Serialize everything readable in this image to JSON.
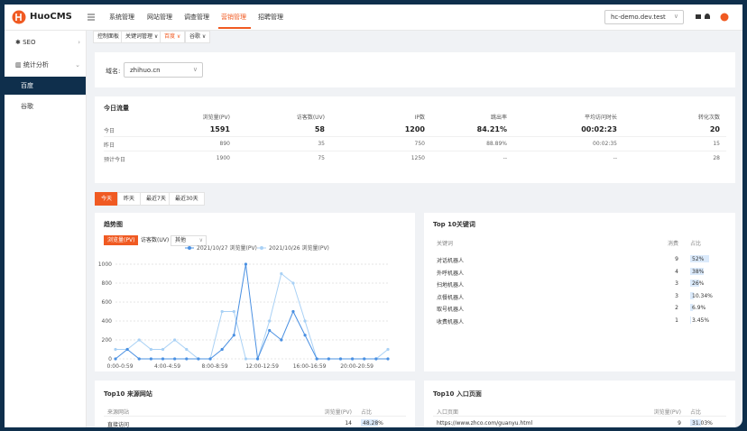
{
  "header": {
    "logo": "HuoCMS",
    "nav": [
      "系统管理",
      "网站管理",
      "调查管理",
      "营销管理",
      "招聘管理"
    ],
    "site_select": "hc-demo.dev.test"
  },
  "sidebar": {
    "items": [
      "SEO",
      "统计分析",
      "百度",
      "谷歌"
    ]
  },
  "breadcrumb": [
    "控制面板",
    "关键词管理",
    "百度",
    "谷歌"
  ],
  "domain": {
    "label": "域名:",
    "value": "zhihuo.cn"
  },
  "traffic": {
    "title": "今日流量",
    "columns": [
      "浏览量(PV)",
      "访客数(UV)",
      "IP数",
      "跳出率",
      "平均访问时长",
      "转化次数"
    ],
    "rows": [
      [
        "今日",
        1591,
        58,
        1200,
        "84.21%",
        "00:02:23",
        20
      ],
      [
        "昨日",
        890,
        35,
        750,
        "88.89%",
        "00:02:35",
        15
      ],
      [
        "预计今日",
        1900,
        75,
        1250,
        "--",
        "--",
        28
      ]
    ]
  },
  "range_tabs": [
    "今天",
    "昨天",
    "最近7天",
    "最近30天"
  ],
  "trend_chart": {
    "type": "line",
    "title": "趋势图",
    "metric_buttons": [
      "浏览量(PV)",
      "访客数(UV)",
      "其他"
    ],
    "categories": [
      "0:00-0:59",
      null,
      null,
      null,
      "4:00-4:59",
      null,
      null,
      null,
      "8:00-8:59",
      null,
      null,
      null,
      "12:00-12:59",
      null,
      null,
      null,
      "16:00-16:59",
      null,
      null,
      null,
      "20:00-20:59",
      null,
      null,
      null
    ],
    "series": [
      {
        "name": "2021/10/27 浏览量(PV)",
        "color": "#4a90e2",
        "values": [
          0,
          100,
          0,
          0,
          0,
          0,
          0,
          0,
          0,
          100,
          250,
          1000,
          0,
          300,
          200,
          500,
          250,
          0,
          0,
          0,
          0,
          0,
          0,
          0
        ]
      },
      {
        "name": "2021/10/26 浏览量(PV)",
        "color": "#a9d1f5",
        "values": [
          100,
          100,
          200,
          100,
          100,
          200,
          100,
          0,
          0,
          500,
          500,
          0,
          0,
          400,
          900,
          800,
          400,
          0,
          0,
          0,
          0,
          0,
          0,
          100
        ]
      }
    ],
    "ylim": [
      0,
      1000
    ],
    "yticks": [
      0,
      200,
      400,
      600,
      800,
      1000
    ],
    "grid": true
  },
  "keywords": {
    "title": "Top 10关键词",
    "columns": [
      "关键词",
      "消费",
      "占比"
    ],
    "rows": [
      {
        "name": "对话机器人",
        "spend": 9,
        "share": 52,
        "share_label": "52%"
      },
      {
        "name": "外呼机器人",
        "spend": 4,
        "share": 38,
        "share_label": "38%"
      },
      {
        "name": "扫地机器人",
        "spend": 3,
        "share": 26,
        "share_label": "26%"
      },
      {
        "name": "点餐机器人",
        "spend": 3,
        "share": 10.34,
        "share_label": "10.34%"
      },
      {
        "name": "取号机器人",
        "spend": 2,
        "share": 6.9,
        "share_label": "6.9%"
      },
      {
        "name": "收费机器人",
        "spend": 1,
        "share": 3.45,
        "share_label": "3.45%"
      }
    ]
  },
  "sources": {
    "title": "Top10 来源网站",
    "columns": [
      "来源网站",
      "浏览量(PV)",
      "占比"
    ],
    "rows": [
      {
        "name": "直接访问",
        "pv": 14,
        "share": 48.28,
        "share_label": "48.28%"
      }
    ]
  },
  "entry_pages": {
    "title": "Top10 入口页面",
    "columns": [
      "入口页面",
      "浏览量(PV)",
      "占比"
    ],
    "rows": [
      {
        "name": "https://www.zhco.com/guanyu.html",
        "pv": 9,
        "share": 31.03,
        "share_label": "31.03%"
      }
    ]
  }
}
